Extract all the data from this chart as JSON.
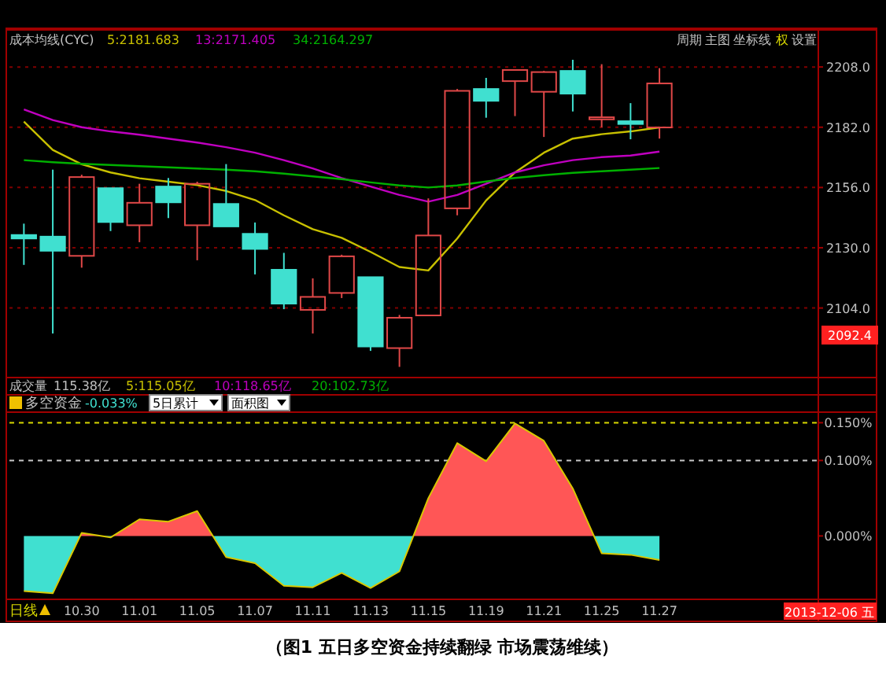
{
  "chart_data": [
    {
      "type": "candlestick",
      "categories": [
        null,
        null,
        null,
        null,
        null,
        null,
        null,
        null,
        null,
        null,
        null,
        null,
        null,
        null,
        null,
        null,
        null,
        null,
        null,
        null,
        null,
        null,
        null
      ],
      "ohlc": [
        [
          2135.5,
          2140.4,
          2122.6,
          2134.0
        ],
        [
          2134.8,
          2163.7,
          2093.0,
          2128.7
        ],
        [
          2126.5,
          2161.5,
          2121.4,
          2160.5
        ],
        [
          2155.7,
          2155.7,
          2137.2,
          2141.1
        ],
        [
          2139.7,
          2157.6,
          2132.4,
          2149.4
        ],
        [
          2156.4,
          2160.1,
          2142.8,
          2149.6
        ],
        [
          2139.7,
          2158.5,
          2124.6,
          2157.6
        ],
        [
          2148.9,
          2166.1,
          2139.2,
          2139.2
        ],
        [
          2136.0,
          2140.9,
          2118.5,
          2129.5
        ],
        [
          2120.5,
          2127.8,
          2103.5,
          2105.9
        ],
        [
          2103.2,
          2116.8,
          2093.0,
          2108.8
        ],
        [
          2110.5,
          2127.0,
          2108.3,
          2126.3
        ],
        [
          2117.3,
          2117.3,
          2085.5,
          2087.4
        ],
        [
          2086.7,
          2101.0,
          2078.6,
          2099.8
        ],
        [
          2100.8,
          2151.3,
          2100.8,
          2135.3
        ],
        [
          2147.0,
          2198.5,
          2144.0,
          2197.7
        ],
        [
          2198.5,
          2203.3,
          2186.1,
          2193.4
        ],
        [
          2201.9,
          2206.7,
          2186.8,
          2206.7
        ],
        [
          2197.3,
          2206.3,
          2177.8,
          2205.8
        ],
        [
          2206.3,
          2211.1,
          2188.8,
          2196.5
        ],
        [
          2185.4,
          2209.2,
          2182.0,
          2186.3
        ],
        [
          2184.6,
          2192.4,
          2176.8,
          2183.4
        ],
        [
          2181.9,
          2207.5,
          2177.1,
          2200.9
        ]
      ],
      "colors": [
        "#40e0d0",
        "#40e0d0",
        "#e04848",
        "#40e0d0",
        "#e04848",
        "#40e0d0",
        "#e04848",
        "#40e0d0",
        "#40e0d0",
        "#40e0d0",
        "#e04848",
        "#e04848",
        "#40e0d0",
        "#e04848",
        "#e04848",
        "#e04848",
        "#40e0d0",
        "#e04848",
        "#e04848",
        "#40e0d0",
        "#e04848",
        "#40e0d0",
        "#e04848"
      ],
      "series": [
        {
          "type": "line",
          "name": "5:2181.683",
          "color": "#c8c000",
          "values": [
            2184.4,
            2172.2,
            2166.0,
            2162.5,
            2160.0,
            2158.5,
            2157.0,
            2154.5,
            2150.6,
            2144.0,
            2138.0,
            2134.3,
            2128.2,
            2121.7,
            2120.2,
            2134.0,
            2150.4,
            2162.5,
            2171.0,
            2177.1,
            2179.0,
            2180.2,
            2181.9
          ]
        },
        {
          "type": "line",
          "name": "13:2171.405",
          "color": "#c000c0",
          "values": [
            2189.7,
            2185.1,
            2182.0,
            2180.2,
            2178.8,
            2177.1,
            2175.4,
            2173.4,
            2171.0,
            2167.8,
            2164.2,
            2160.1,
            2156.4,
            2152.8,
            2149.9,
            2152.8,
            2157.6,
            2162.5,
            2165.6,
            2167.8,
            2169.1,
            2169.8,
            2171.5
          ]
        },
        {
          "type": "line",
          "name": "34:2164.297",
          "color": "#00b000",
          "values": [
            2167.8,
            2166.9,
            2166.2,
            2165.7,
            2165.2,
            2164.7,
            2164.2,
            2163.7,
            2163.0,
            2162.0,
            2160.8,
            2159.6,
            2158.2,
            2156.9,
            2156.0,
            2156.9,
            2158.6,
            2160.1,
            2161.3,
            2162.3,
            2163.0,
            2163.7,
            2164.4
          ]
        }
      ],
      "ylim": [
        2074,
        2224
      ],
      "yticks": [
        {
          "value": 2104,
          "label": "2104.0"
        },
        {
          "value": 2130,
          "label": "2130.0"
        },
        {
          "value": 2156,
          "label": "2156.0"
        },
        {
          "value": 2182,
          "label": "2182.0"
        },
        {
          "value": 2208,
          "label": "2208.0"
        }
      ],
      "grid": "y",
      "tick_labels": "y",
      "annotations": [
        "成本均线(CYC)",
        "周期",
        "主图",
        "坐标线",
        "权",
        "设置",
        "2092.4",
        "成交量",
        "115.38亿",
        "5:115.05亿",
        "10:118.65亿",
        "20:102.73亿"
      ]
    },
    {
      "type": "area",
      "categories": [
        null,
        null,
        "10.30",
        null,
        "11.01",
        null,
        "11.05",
        null,
        "11.07",
        null,
        "11.11",
        null,
        "11.13",
        null,
        "11.15",
        null,
        "11.19",
        null,
        "11.21",
        null,
        "11.25",
        null,
        "11.27"
      ],
      "series": [
        {
          "color": "#d8c800",
          "colors": [
            "#40e0d0",
            "#40e0d0",
            "#ff5656",
            "#40e0d0",
            "#ff5656",
            "#ff5656",
            "#ff5656",
            "#40e0d0",
            "#40e0d0",
            "#40e0d0",
            "#40e0d0",
            "#40e0d0",
            "#40e0d0",
            "#40e0d0",
            "#ff5656",
            "#ff5656",
            "#ff5656",
            "#ff5656",
            "#ff5656",
            "#ff5656",
            "#40e0d0",
            "#40e0d0",
            "#40e0d0"
          ],
          "values": [
            -0.073,
            -0.076,
            0.004,
            -0.002,
            0.022,
            0.019,
            0.033,
            -0.028,
            -0.036,
            -0.066,
            -0.068,
            -0.049,
            -0.069,
            -0.047,
            0.05,
            0.123,
            0.099,
            0.149,
            0.126,
            0.063,
            -0.023,
            -0.025,
            -0.032
          ]
        }
      ],
      "ylim": [
        -0.084,
        0.164
      ],
      "yticks": [
        {
          "value": 0,
          "label": "0.000%"
        },
        {
          "value": 0.1,
          "label": "0.100%"
        },
        {
          "value": 0.15,
          "label": "0.150%"
        }
      ],
      "ref_lines": [
        {
          "axis": "y",
          "value": 0.15,
          "color": "#d8d800",
          "line_style": "dashed"
        },
        {
          "axis": "y",
          "value": 0.1,
          "color": "#c8c8c8",
          "line_style": "dashed"
        }
      ],
      "annotations": [
        "多空资金",
        "-0.033%",
        "5日累计",
        "面积图",
        "日线",
        "2013-12-06 五",
        "（图1  五日多空资金持续翻绿  市场震荡维续）"
      ]
    }
  ]
}
